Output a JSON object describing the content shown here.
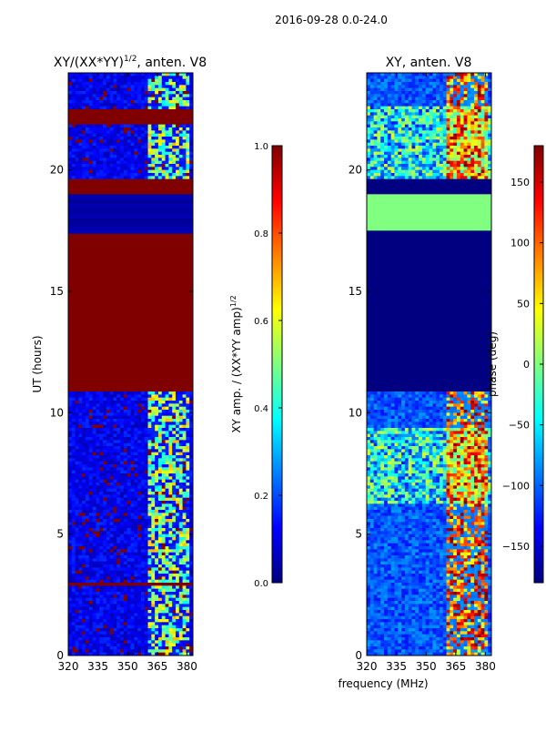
{
  "figure": {
    "suptitle": "2016-09-28 0.0-24.0",
    "shared_xlabel": "frequency (MHz)"
  },
  "chart_data": [
    {
      "type": "heatmap",
      "title_main": "XY/(XX*YY)",
      "title_sup": "1/2",
      "title_rest": ", anten. V8",
      "xlabel": "",
      "ylabel": "UT (hours)",
      "xlim": [
        320,
        383
      ],
      "ylim": [
        0,
        24
      ],
      "x_ticks": [
        320,
        335,
        350,
        365,
        380
      ],
      "y_ticks": [
        0,
        5,
        10,
        15,
        20
      ],
      "rfi_channel_range_mhz": [
        360,
        381
      ],
      "row_bands_hours": [
        {
          "from": 0.0,
          "to": 2.9,
          "level": "low-noisy"
        },
        {
          "from": 2.9,
          "to": 3.05,
          "level": "flagged"
        },
        {
          "from": 3.05,
          "to": 10.9,
          "level": "low-noisy"
        },
        {
          "from": 10.9,
          "to": 17.4,
          "level": "flagged"
        },
        {
          "from": 17.4,
          "to": 19.0,
          "level": "low"
        },
        {
          "from": 19.0,
          "to": 19.6,
          "level": "flagged"
        },
        {
          "from": 19.6,
          "to": 21.9,
          "level": "low-noisy"
        },
        {
          "from": 21.9,
          "to": 22.5,
          "level": "flagged"
        },
        {
          "from": 22.5,
          "to": 24.0,
          "level": "low-noisy"
        }
      ],
      "colorbar": {
        "label_main": "XY amp. / (XX*YY amp)",
        "label_sup": "1/2",
        "range": [
          0.0,
          1.0
        ],
        "ticks": [
          0.0,
          0.2,
          0.4,
          0.6,
          0.8,
          1.0
        ],
        "tick_labels": [
          "0.0",
          "0.2",
          "0.4",
          "0.6",
          "0.8",
          "1.0"
        ],
        "colormap": "jet"
      }
    },
    {
      "type": "heatmap",
      "title_main": "XY, anten. V8",
      "title_sup": "",
      "title_rest": "",
      "xlabel": "frequency (MHz)",
      "ylabel": "",
      "xlim": [
        320,
        383
      ],
      "ylim": [
        0,
        24
      ],
      "x_ticks": [
        320,
        335,
        350,
        365,
        380
      ],
      "y_ticks": [
        0,
        5,
        10,
        15,
        20
      ],
      "rfi_channel_range_mhz": [
        360,
        381
      ],
      "row_bands_hours": [
        {
          "from": 0.0,
          "to": 3.2,
          "level": "phase-noisy"
        },
        {
          "from": 3.2,
          "to": 6.2,
          "level": "phase-noisy"
        },
        {
          "from": 6.2,
          "to": 9.4,
          "level": "phase-mixed"
        },
        {
          "from": 9.4,
          "to": 10.9,
          "level": "phase-noisy"
        },
        {
          "from": 10.9,
          "to": 17.5,
          "level": "phase-min"
        },
        {
          "from": 17.5,
          "to": 19.0,
          "level": "phase-zero"
        },
        {
          "from": 19.0,
          "to": 19.6,
          "level": "phase-min"
        },
        {
          "from": 19.6,
          "to": 22.6,
          "level": "phase-mixed"
        },
        {
          "from": 22.6,
          "to": 24.0,
          "level": "phase-noisy"
        }
      ],
      "colorbar": {
        "label_main": "phase (deg)",
        "label_sup": "",
        "range": [
          -180,
          180
        ],
        "ticks": [
          -150,
          -100,
          -50,
          0,
          50,
          100,
          150
        ],
        "tick_labels": [
          "−150",
          "−100",
          "−50",
          "0",
          "50",
          "100",
          "150"
        ],
        "colormap": "jet"
      }
    }
  ]
}
